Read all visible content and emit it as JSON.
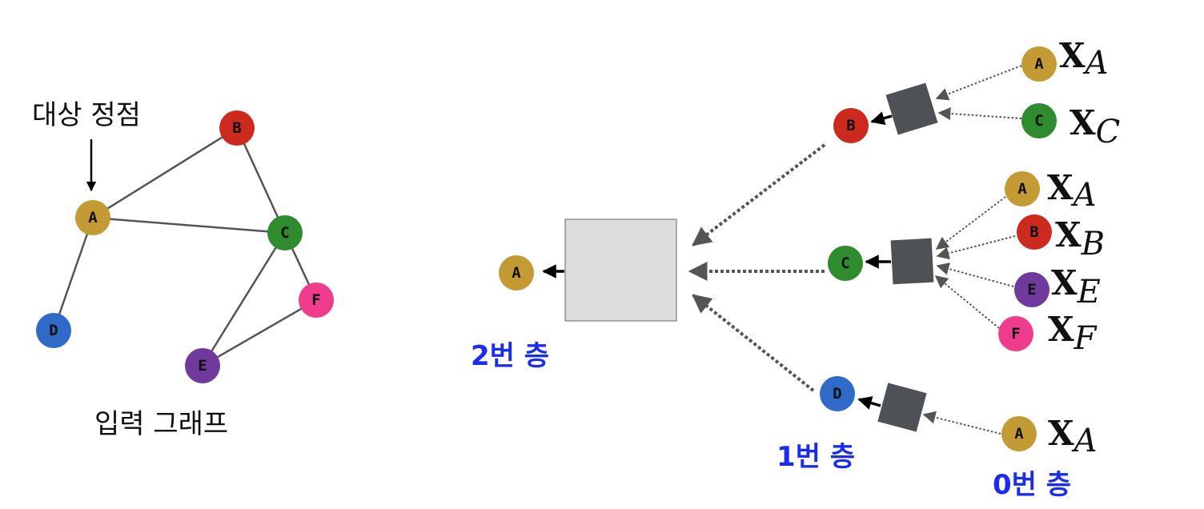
{
  "colors": {
    "A": "#c49a35",
    "B": "#cc2a1e",
    "C": "#2e8b2e",
    "D": "#2f6ac8",
    "E": "#6f3a9c",
    "F": "#f03c8c",
    "big_box": "#dcdcdc",
    "small_box": "#4e5257",
    "layer_text": "#1a2cf0"
  },
  "left_graph": {
    "target_label": "대상 정점",
    "caption": "입력 그래프",
    "nodes": [
      "A",
      "B",
      "C",
      "D",
      "E",
      "F"
    ],
    "edges": [
      [
        "A",
        "B"
      ],
      [
        "A",
        "C"
      ],
      [
        "B",
        "C"
      ],
      [
        "A",
        "D"
      ],
      [
        "C",
        "E"
      ],
      [
        "C",
        "F"
      ],
      [
        "E",
        "F"
      ]
    ]
  },
  "computation_graph": {
    "root": "A",
    "layer_labels": {
      "layer2": "2번 층",
      "layer1": "1번 층",
      "layer0": "0번 층"
    },
    "layer1_nodes": [
      "B",
      "C",
      "D"
    ],
    "inputs": {
      "B": [
        {
          "node": "A",
          "feature": "A"
        },
        {
          "node": "C",
          "feature": "C"
        }
      ],
      "C": [
        {
          "node": "A",
          "feature": "A"
        },
        {
          "node": "B",
          "feature": "B"
        },
        {
          "node": "E",
          "feature": "E"
        },
        {
          "node": "F",
          "feature": "F"
        }
      ],
      "D": [
        {
          "node": "A",
          "feature": "A"
        }
      ]
    },
    "feature_symbol": "X"
  }
}
